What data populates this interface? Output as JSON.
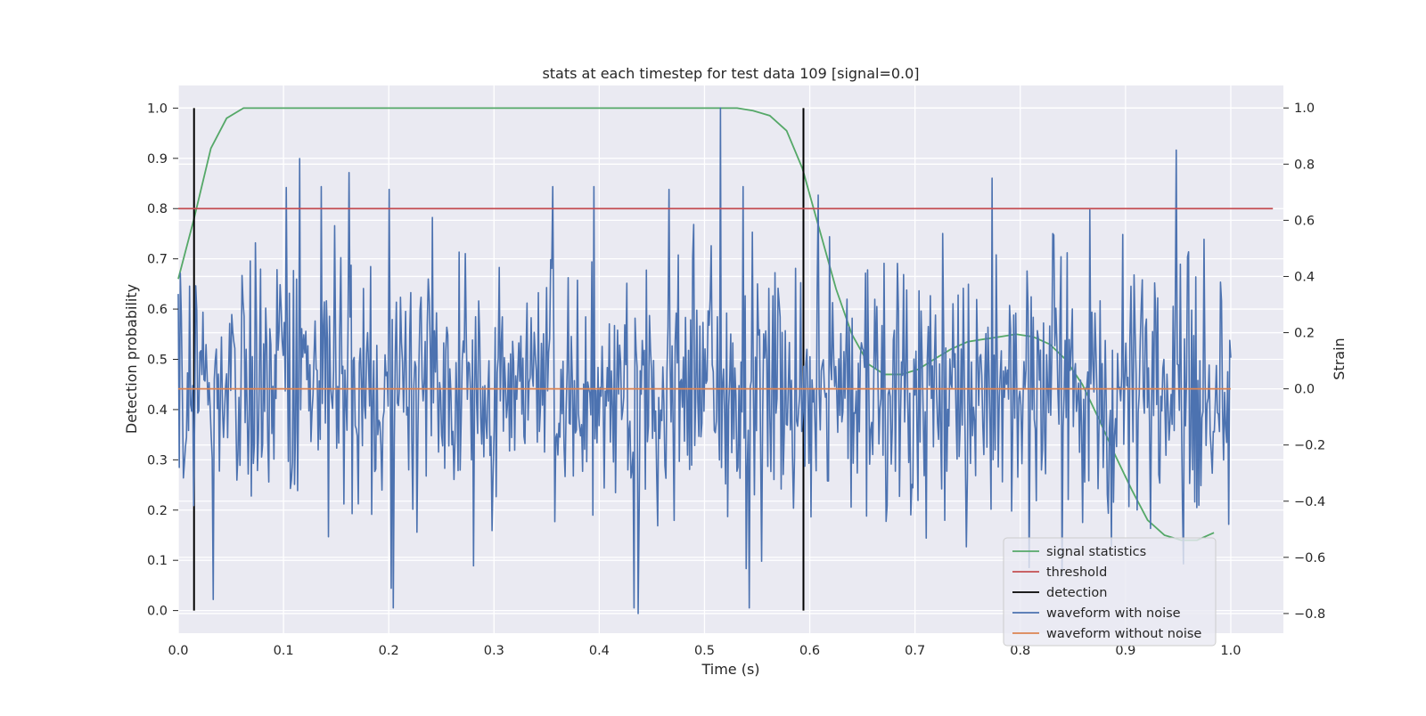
{
  "chart_data": {
    "type": "line",
    "title": "stats at each timestep for test data 109 [signal=0.0]",
    "xlabel": "Time (s)",
    "ylabel_left": "Detection probability",
    "ylabel_right": "Strain",
    "xlim": [
      0.0,
      1.05
    ],
    "ylim_left": [
      -0.045,
      1.045
    ],
    "ylim_right": [
      -0.87,
      1.08
    ],
    "x_ticks": [
      0.0,
      0.1,
      0.2,
      0.3,
      0.4,
      0.5,
      0.6,
      0.7,
      0.8,
      0.9,
      1.0
    ],
    "x_tick_labels": [
      "0.0",
      "0.1",
      "0.2",
      "0.3",
      "0.4",
      "0.5",
      "0.6",
      "0.7",
      "0.8",
      "0.9",
      "1.0"
    ],
    "left_ticks": [
      0.0,
      0.1,
      0.2,
      0.3,
      0.4,
      0.5,
      0.6,
      0.7,
      0.8,
      0.9,
      1.0
    ],
    "left_tick_labels": [
      "0.0",
      "0.1",
      "0.2",
      "0.3",
      "0.4",
      "0.5",
      "0.6",
      "0.7",
      "0.8",
      "0.9",
      "1.0"
    ],
    "right_ticks": [
      -0.8,
      -0.6,
      -0.4,
      -0.2,
      0.0,
      0.2,
      0.4,
      0.6,
      0.8,
      1.0
    ],
    "right_tick_labels": [
      "−0.8",
      "−0.6",
      "−0.4",
      "−0.2",
      "0.0",
      "0.2",
      "0.4",
      "0.6",
      "0.8",
      "1.0"
    ],
    "grid": true,
    "legend_position": "bottom-right",
    "colors": {
      "signal": "#55a868",
      "threshold": "#c44e52",
      "detection": "#000000",
      "noisy": "#4c72b0",
      "clean": "#dd8452",
      "background": "#eaeaf2"
    },
    "series": [
      {
        "name": "signal statistics",
        "axis": "left",
        "x": [
          0.0,
          0.015,
          0.031,
          0.046,
          0.062,
          0.077,
          0.1,
          0.2,
          0.3,
          0.4,
          0.5,
          0.531,
          0.546,
          0.562,
          0.578,
          0.593,
          0.609,
          0.625,
          0.64,
          0.656,
          0.671,
          0.687,
          0.703,
          0.718,
          0.734,
          0.75,
          0.765,
          0.781,
          0.796,
          0.812,
          0.828,
          0.843,
          0.859,
          0.875,
          0.89,
          0.906,
          0.921,
          0.937,
          0.953,
          0.968,
          0.984
        ],
        "y": [
          0.66,
          0.78,
          0.92,
          0.98,
          1.0,
          1.0,
          1.0,
          1.0,
          1.0,
          1.0,
          1.0,
          1.0,
          0.995,
          0.985,
          0.955,
          0.88,
          0.76,
          0.64,
          0.55,
          0.49,
          0.47,
          0.47,
          0.48,
          0.5,
          0.52,
          0.535,
          0.54,
          0.545,
          0.55,
          0.545,
          0.53,
          0.5,
          0.45,
          0.38,
          0.31,
          0.24,
          0.18,
          0.15,
          0.14,
          0.14,
          0.155
        ]
      },
      {
        "name": "threshold",
        "axis": "left",
        "x": [
          0.0,
          1.04
        ],
        "y": [
          0.8,
          0.8
        ]
      },
      {
        "name": "detection",
        "axis": "left",
        "type": "vlines",
        "x": [
          0.015,
          0.594
        ],
        "y": [
          0.0,
          1.0
        ]
      },
      {
        "name": "waveform with noise",
        "axis": "right",
        "generated": "noise",
        "n": 1024,
        "x_start": 0.0,
        "x_end": 1.0,
        "std": 0.24,
        "seed": 109,
        "highlights": [
          [
            0.515,
            1.0
          ],
          [
            0.437,
            -0.8
          ],
          [
            0.115,
            0.82
          ],
          [
            0.773,
            0.75
          ],
          [
            0.608,
            0.69
          ],
          [
            0.2,
            0.71
          ],
          [
            0.136,
            0.72
          ],
          [
            0.033,
            -0.75
          ],
          [
            0.073,
            0.52
          ],
          [
            0.241,
            0.61
          ],
          [
            0.356,
            0.72
          ],
          [
            0.395,
            0.72
          ],
          [
            0.466,
            0.71
          ],
          [
            0.537,
            0.72
          ],
          [
            0.202,
            -0.71
          ],
          [
            0.281,
            -0.63
          ],
          [
            0.54,
            -0.64
          ]
        ]
      },
      {
        "name": "waveform without noise",
        "axis": "right",
        "x": [
          0.0,
          1.0
        ],
        "y": [
          0.0,
          0.0
        ]
      }
    ]
  }
}
